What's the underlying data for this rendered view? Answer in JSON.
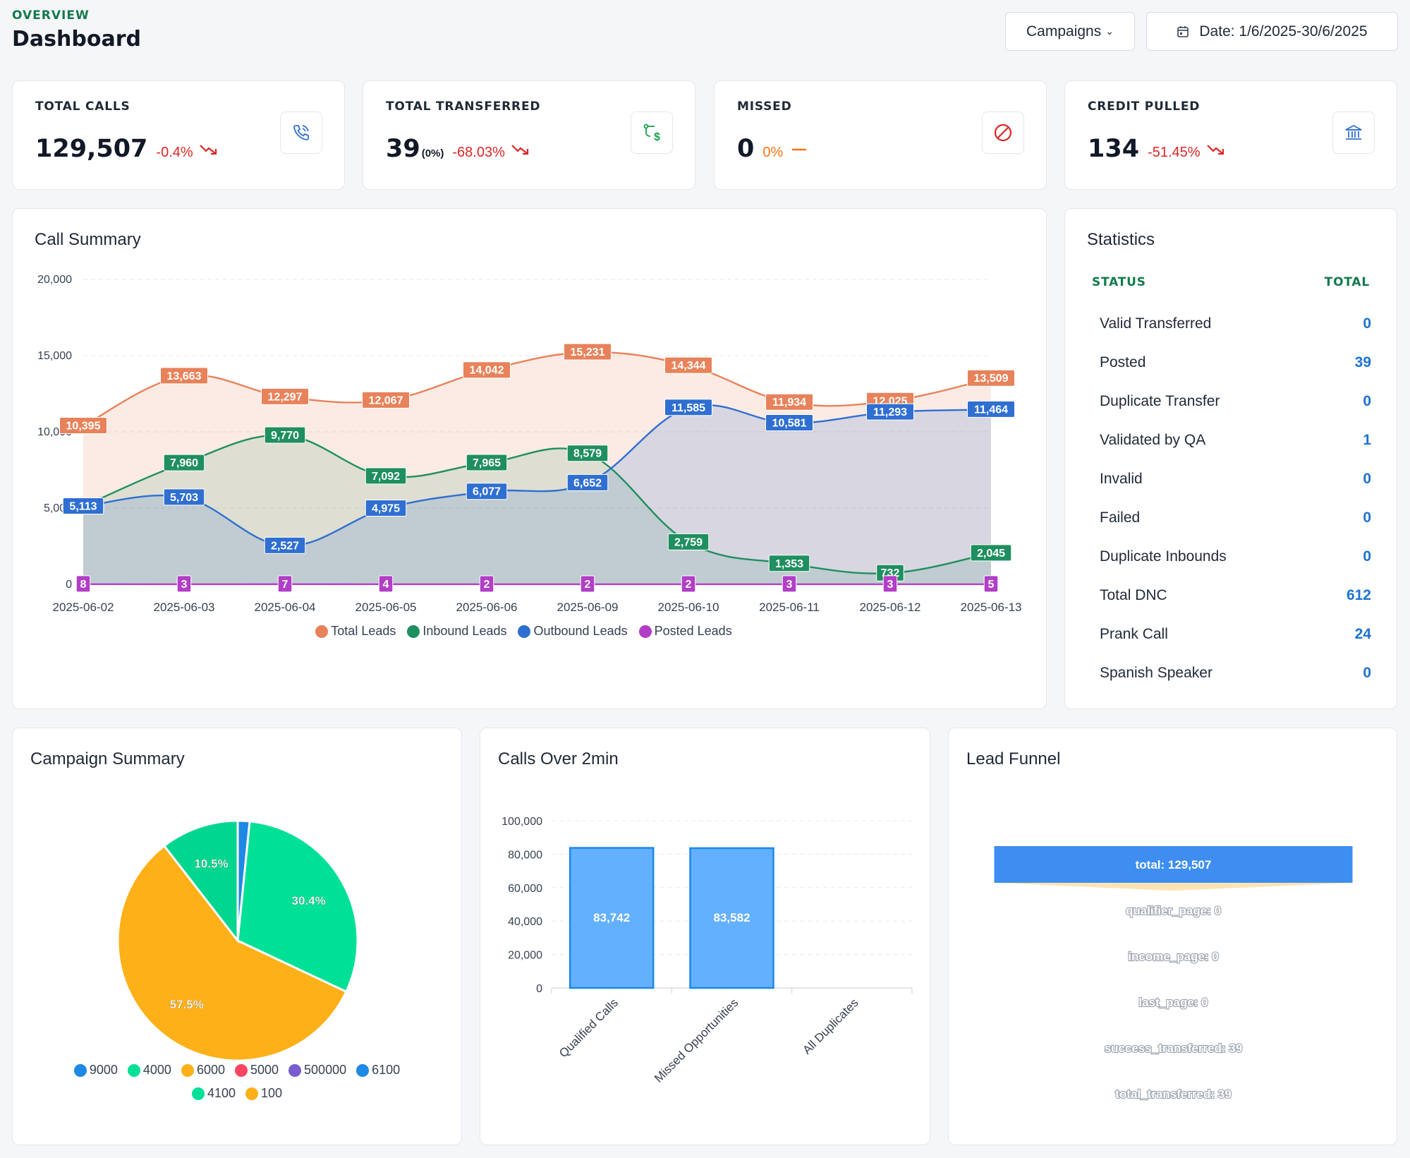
{
  "header": {
    "overview": "OVERVIEW",
    "title": "Dashboard",
    "campaigns_label": "Campaigns",
    "date_label": "Date: 1/6/2025-30/6/2025"
  },
  "stats": [
    {
      "label": "TOTAL CALLS",
      "value": "129,507",
      "sub": "",
      "change": "-0.4%",
      "trend": "down",
      "icon": "phone-icon"
    },
    {
      "label": "TOTAL TRANSFERRED",
      "value": "39",
      "sub": "(0%)",
      "change": "-68.03%",
      "trend": "down",
      "icon": "transfer-dollar-icon"
    },
    {
      "label": "MISSED",
      "value": "0",
      "sub": "",
      "change": "0%",
      "trend": "flat",
      "icon": "ban-icon"
    },
    {
      "label": "CREDIT PULLED",
      "value": "134",
      "sub": "",
      "change": "-51.45%",
      "trend": "down",
      "icon": "bank-icon"
    }
  ],
  "call_summary": {
    "title": "Call Summary"
  },
  "statistics": {
    "title": "Statistics",
    "col_status": "STATUS",
    "col_total": "TOTAL",
    "rows": [
      {
        "label": "Valid Transferred",
        "value": "0"
      },
      {
        "label": "Posted",
        "value": "39"
      },
      {
        "label": "Duplicate Transfer",
        "value": "0"
      },
      {
        "label": "Validated by QA",
        "value": "1"
      },
      {
        "label": "Invalid",
        "value": "0"
      },
      {
        "label": "Failed",
        "value": "0"
      },
      {
        "label": "Duplicate Inbounds",
        "value": "0"
      },
      {
        "label": "Total DNC",
        "value": "612"
      },
      {
        "label": "Prank Call",
        "value": "24"
      },
      {
        "label": "Spanish Speaker",
        "value": "0"
      }
    ]
  },
  "campaign_summary": {
    "title": "Campaign Summary"
  },
  "calls_over": {
    "title": "Calls Over 2min"
  },
  "lead_funnel": {
    "title": "Lead Funnel"
  },
  "chart_data": [
    {
      "type": "area",
      "title": "Call Summary",
      "categories": [
        "2025-06-02",
        "2025-06-03",
        "2025-06-04",
        "2025-06-05",
        "2025-06-06",
        "2025-06-09",
        "2025-06-10",
        "2025-06-11",
        "2025-06-12",
        "2025-06-13"
      ],
      "ylim": [
        0,
        20000
      ],
      "yticks": [
        "0",
        "5,000",
        "10,000",
        "15,000",
        "20,000"
      ],
      "series": [
        {
          "name": "Total Leads",
          "color": "#e8825a",
          "values": [
            10395,
            13663,
            12297,
            12067,
            14042,
            15231,
            14344,
            11934,
            12025,
            13509
          ]
        },
        {
          "name": "Inbound Leads",
          "color": "#1f8f5f",
          "values": [
            5113,
            7960,
            9770,
            7092,
            7965,
            8579,
            2759,
            1353,
            732,
            2045
          ]
        },
        {
          "name": "Outbound Leads",
          "color": "#2f6fd1",
          "values": [
            5113,
            5703,
            2527,
            4975,
            6077,
            6652,
            11585,
            10581,
            11293,
            11464
          ]
        },
        {
          "name": "Posted Leads",
          "color": "#b23ec7",
          "values": [
            8,
            3,
            7,
            4,
            2,
            2,
            2,
            3,
            3,
            5
          ]
        }
      ]
    },
    {
      "type": "pie",
      "title": "Campaign Summary",
      "slices": [
        {
          "label": "6100",
          "value": 1.6,
          "color": "#1e88e5",
          "text": ""
        },
        {
          "label": "4000",
          "value": 30.4,
          "color": "#00e096",
          "text": "30.4%"
        },
        {
          "label": "6000",
          "value": 57.5,
          "color": "#feb019",
          "text": "57.5%"
        },
        {
          "label": "4100",
          "value": 10.5,
          "color": "#00d68f",
          "text": "10.5%"
        }
      ],
      "legend": [
        {
          "label": "9000",
          "color": "#1e88e5"
        },
        {
          "label": "4000",
          "color": "#00e096"
        },
        {
          "label": "6000",
          "color": "#feb019"
        },
        {
          "label": "5000",
          "color": "#ff4560"
        },
        {
          "label": "500000",
          "color": "#775dd0"
        },
        {
          "label": "6100",
          "color": "#1e88e5"
        },
        {
          "label": "4100",
          "color": "#00e096"
        },
        {
          "label": "100",
          "color": "#feb019"
        }
      ]
    },
    {
      "type": "bar",
      "title": "Calls Over 2min",
      "categories": [
        "Qualified Calls",
        "Missed Opportunities",
        "All Duplicates"
      ],
      "values": [
        83742,
        83582,
        0
      ],
      "labels": [
        "83,742",
        "83,582",
        ""
      ],
      "ylim": [
        0,
        100000
      ],
      "yticks": [
        "0",
        "20,000",
        "40,000",
        "60,000",
        "80,000",
        "100,000"
      ]
    },
    {
      "type": "funnel",
      "title": "Lead Funnel",
      "stages": [
        {
          "label": "total: 129,507",
          "value": 129507
        },
        {
          "label": "qualifier_page: 0",
          "value": 0
        },
        {
          "label": "income_page: 0",
          "value": 0
        },
        {
          "label": "last_page: 0",
          "value": 0
        },
        {
          "label": "success_transferred: 39",
          "value": 39
        },
        {
          "label": "total_transferred: 39",
          "value": 39
        }
      ]
    }
  ]
}
